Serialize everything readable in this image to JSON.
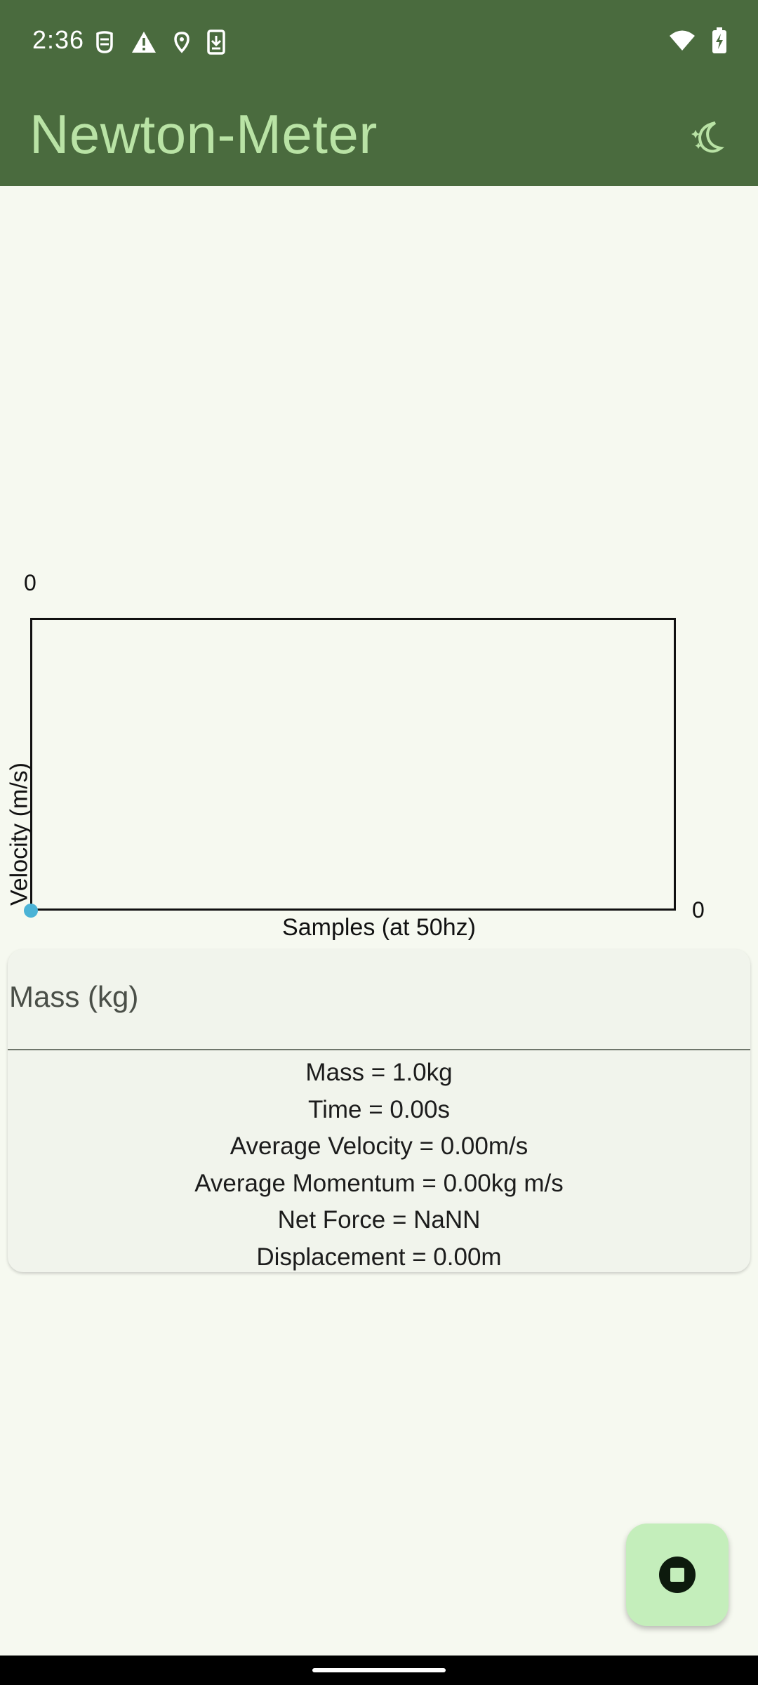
{
  "status_bar": {
    "time": "2:36",
    "icons_left": [
      "mask-icon",
      "warning-icon",
      "location-pin-icon",
      "download-icon"
    ],
    "icons_right": [
      "wifi-icon",
      "battery-charging-icon"
    ]
  },
  "app_bar": {
    "title": "Newton-Meter",
    "action_icon": "theme-toggle-icon"
  },
  "chart_data": {
    "type": "scatter",
    "title": "",
    "xlabel": "Samples (at 50hz)",
    "ylabel": "Velocity (m/s)",
    "y_tick_top": "0",
    "x_tick_right": "0",
    "points": [
      {
        "x": 0,
        "y": 0
      }
    ],
    "point_color": "#4BB3D6",
    "grid": false
  },
  "card": {
    "mass_field": {
      "label": "Mass (kg)",
      "value": ""
    },
    "stats": [
      "Mass = 1.0kg",
      "Time = 0.00s",
      "Average Velocity = 0.00m/s",
      "Average Momentum = 0.00kg m/s",
      "Net Force = NaNN",
      "Displacement = 0.00m"
    ]
  },
  "fab": {
    "icon": "stop-icon"
  },
  "colors": {
    "app_bar": "#4A6B3E",
    "title": "#B9E3A5",
    "background": "#F6F9F0",
    "card": "#F1F4EC",
    "fab": "#C4EEBB"
  }
}
